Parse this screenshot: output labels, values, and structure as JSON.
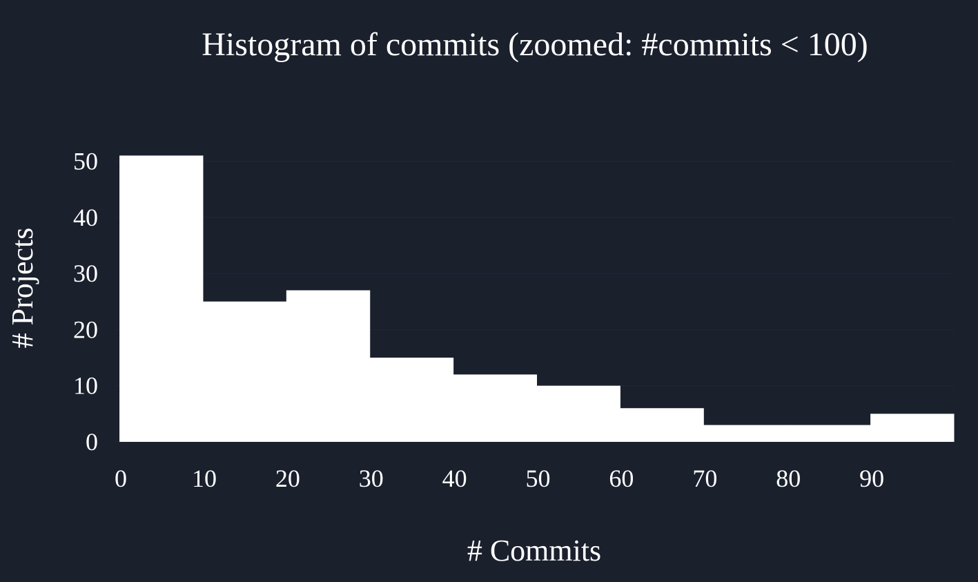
{
  "chart_data": {
    "type": "bar",
    "title": "Histogram of commits (zoomed: #commits < 100)",
    "xlabel": "# Commits",
    "ylabel": "# Projects",
    "bins": [
      {
        "start": 0,
        "end": 10,
        "count": 51
      },
      {
        "start": 10,
        "end": 20,
        "count": 25
      },
      {
        "start": 20,
        "end": 30,
        "count": 27
      },
      {
        "start": 30,
        "end": 40,
        "count": 15
      },
      {
        "start": 40,
        "end": 50,
        "count": 12
      },
      {
        "start": 50,
        "end": 60,
        "count": 10
      },
      {
        "start": 60,
        "end": 70,
        "count": 6
      },
      {
        "start": 70,
        "end": 80,
        "count": 3
      },
      {
        "start": 80,
        "end": 90,
        "count": 3
      },
      {
        "start": 90,
        "end": 100,
        "count": 5
      }
    ],
    "xticks": [
      0,
      10,
      20,
      30,
      40,
      50,
      60,
      70,
      80,
      90
    ],
    "yticks": [
      0,
      10,
      20,
      30,
      40,
      50
    ],
    "xlim": [
      -0.5,
      100
    ],
    "ylim": [
      0,
      53.5
    ],
    "grid": true,
    "colors": {
      "background": "#1b202d",
      "bar": "#ffffff",
      "text": "#ffffff",
      "grid": "#222735"
    }
  }
}
